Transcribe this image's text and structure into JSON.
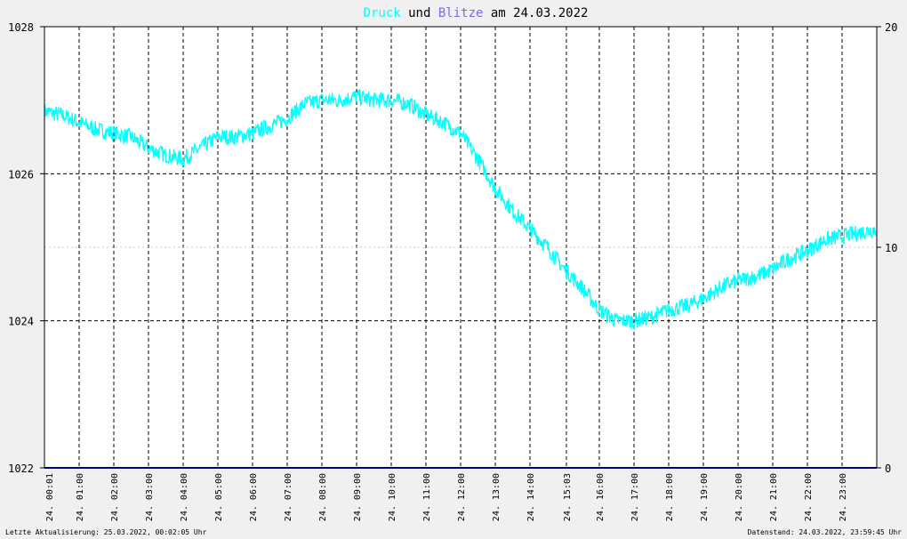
{
  "title": {
    "part1": "Druck",
    "part2": " und ",
    "part3": "Blitze",
    "part4": " am 24.03.2022"
  },
  "footer": {
    "left": "Letzte Aktualisierung: 25.03.2022, 00:02:05 Uhr",
    "right": "Datenstand: 24.03.2022, 23:59:45 Uhr"
  },
  "colors": {
    "druck": "#00ffff",
    "blitze": "#000080",
    "grid": "#000000",
    "background": "#ffffff"
  },
  "chart_data": {
    "type": "line",
    "title": "Druck und Blitze am 24.03.2022",
    "x_ticks": [
      "24. 00:01",
      "24. 01:00",
      "24. 02:00",
      "24. 03:00",
      "24. 04:00",
      "24. 05:00",
      "24. 06:00",
      "24. 07:00",
      "24. 08:00",
      "24. 09:00",
      "24. 10:00",
      "24. 11:00",
      "24. 12:00",
      "24. 13:00",
      "24. 14:00",
      "24. 15:03",
      "24. 16:00",
      "24. 17:00",
      "24. 18:00",
      "24. 19:00",
      "24. 20:00",
      "24. 21:00",
      "24. 22:00",
      "24. 23:00"
    ],
    "x_tick_hours": [
      0.02,
      1,
      2,
      3,
      4,
      5,
      6,
      7,
      8,
      9,
      10,
      11,
      12,
      13,
      14,
      15.05,
      16,
      17,
      18,
      19,
      20,
      21,
      22,
      23
    ],
    "xlim_hours": [
      0,
      24
    ],
    "y_left": {
      "ylim": [
        1022,
        1028
      ],
      "ticks": [
        "1022",
        "1024",
        "1026",
        "1028"
      ]
    },
    "y_right": {
      "ylim": [
        0,
        20
      ],
      "ticks": [
        "0",
        "10",
        "20"
      ]
    },
    "grid": true,
    "series": [
      {
        "name": "Druck",
        "axis": "left",
        "x": [
          0,
          0.5,
          1,
          1.5,
          2,
          2.5,
          3,
          3.5,
          4,
          4.5,
          5,
          5.5,
          6,
          6.5,
          7,
          7.5,
          8,
          8.5,
          9,
          9.5,
          10,
          10.5,
          11,
          11.5,
          12,
          12.5,
          13,
          13.5,
          14,
          14.5,
          15,
          15.5,
          16,
          16.5,
          17,
          17.5,
          18,
          18.5,
          19,
          19.5,
          20,
          20.5,
          21,
          21.5,
          22,
          22.5,
          23,
          23.5,
          24
        ],
        "y": [
          1026.85,
          1026.8,
          1026.7,
          1026.6,
          1026.55,
          1026.5,
          1026.35,
          1026.25,
          1026.2,
          1026.35,
          1026.5,
          1026.5,
          1026.55,
          1026.65,
          1026.75,
          1026.95,
          1027.0,
          1027.0,
          1027.05,
          1027.0,
          1027.0,
          1026.95,
          1026.8,
          1026.7,
          1026.55,
          1026.2,
          1025.8,
          1025.5,
          1025.25,
          1025.0,
          1024.7,
          1024.45,
          1024.15,
          1024.0,
          1024.0,
          1024.05,
          1024.15,
          1024.2,
          1024.3,
          1024.45,
          1024.55,
          1024.6,
          1024.7,
          1024.85,
          1024.95,
          1025.1,
          1025.15,
          1025.2,
          1025.25
        ]
      },
      {
        "name": "Blitze",
        "axis": "right",
        "x": [
          0,
          24
        ],
        "y": [
          0,
          0
        ]
      }
    ]
  }
}
